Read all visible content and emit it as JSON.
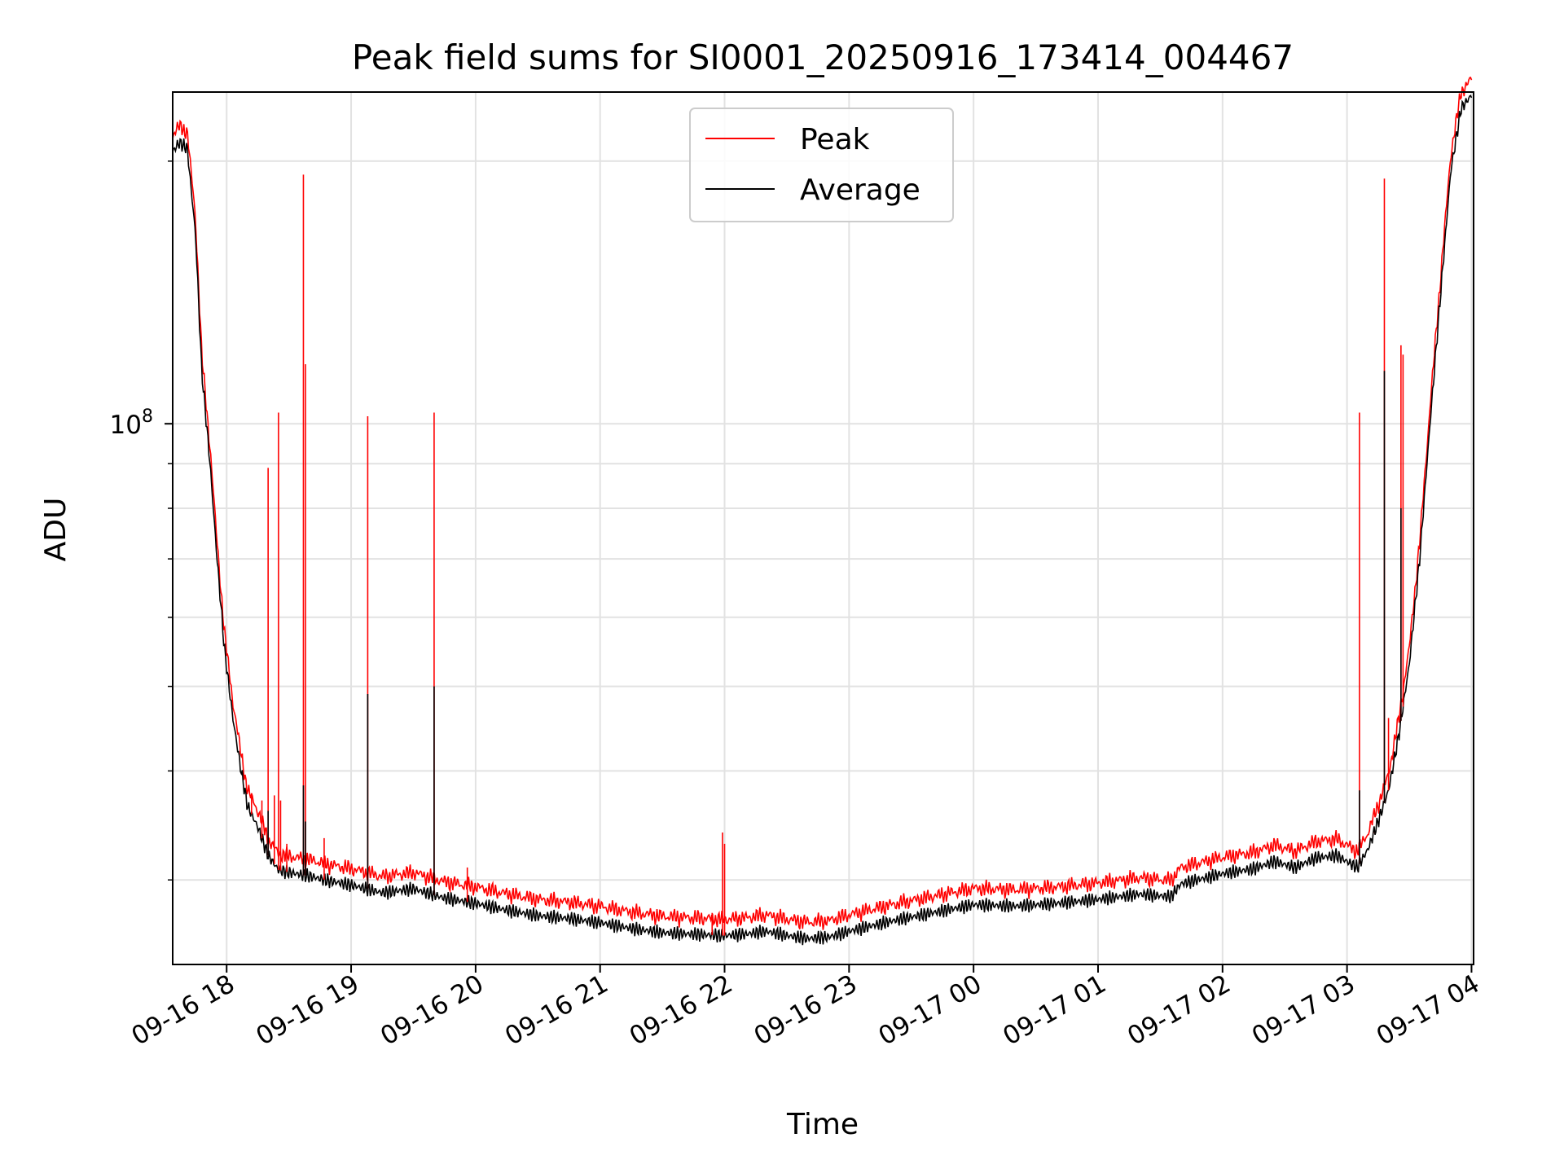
{
  "chart_data": {
    "type": "line",
    "title": "Peak field sums for SI0001_20250916_173414_004467",
    "xlabel": "Time",
    "ylabel": "ADU",
    "yscale": "log",
    "ylim": [
      24000000,
      240000000
    ],
    "xlim": [
      "2025-09-16 17:34",
      "2025-09-17 04:01"
    ],
    "x_ticks": [
      "09-16 18",
      "09-16 19",
      "09-16 20",
      "09-16 21",
      "09-16 22",
      "09-16 23",
      "09-17 00",
      "09-17 01",
      "09-17 02",
      "09-17 03",
      "09-17 04"
    ],
    "y_tick_label": {
      "base": "10",
      "exponent": "8"
    },
    "grid": true,
    "legend": {
      "position": "top-center",
      "entries": [
        "Peak",
        "Average"
      ]
    },
    "series": [
      {
        "name": "Average",
        "color": "#000000",
        "points": [
          [
            "2025-09-16 17:34",
            205000000
          ],
          [
            "2025-09-16 17:37",
            210000000
          ],
          [
            "2025-09-16 17:41",
            207000000
          ],
          [
            "2025-09-16 17:45",
            165000000
          ],
          [
            "2025-09-16 17:48",
            115000000
          ],
          [
            "2025-09-16 17:52",
            90000000
          ],
          [
            "2025-09-16 17:55",
            72000000
          ],
          [
            "2025-09-16 17:59",
            55000000
          ],
          [
            "2025-09-16 18:03",
            46000000
          ],
          [
            "2025-09-16 18:07",
            40000000
          ],
          [
            "2025-09-16 18:10",
            36500000
          ],
          [
            "2025-09-16 18:15",
            34500000
          ],
          [
            "2025-09-16 18:20",
            32000000
          ],
          [
            "2025-09-16 18:25",
            30800000
          ],
          [
            "2025-09-16 18:30",
            30600000
          ],
          [
            "2025-09-16 18:40",
            30300000
          ],
          [
            "2025-09-16 18:50",
            29900000
          ],
          [
            "2025-09-16 19:00",
            29600000
          ],
          [
            "2025-09-16 19:15",
            29000000
          ],
          [
            "2025-09-16 19:30",
            29300000
          ],
          [
            "2025-09-16 19:45",
            28600000
          ],
          [
            "2025-09-16 20:00",
            28200000
          ],
          [
            "2025-09-16 20:15",
            27700000
          ],
          [
            "2025-09-16 20:30",
            27300000
          ],
          [
            "2025-09-16 20:45",
            27100000
          ],
          [
            "2025-09-16 21:00",
            26800000
          ],
          [
            "2025-09-16 21:15",
            26400000
          ],
          [
            "2025-09-16 21:30",
            26100000
          ],
          [
            "2025-09-16 21:45",
            26000000
          ],
          [
            "2025-09-16 22:00",
            25900000
          ],
          [
            "2025-09-16 22:10",
            26000000
          ],
          [
            "2025-09-16 22:20",
            26200000
          ],
          [
            "2025-09-16 22:30",
            25900000
          ],
          [
            "2025-09-16 22:40",
            25700000
          ],
          [
            "2025-09-16 22:50",
            25800000
          ],
          [
            "2025-09-16 23:00",
            26200000
          ],
          [
            "2025-09-16 23:20",
            26900000
          ],
          [
            "2025-09-16 23:40",
            27500000
          ],
          [
            "2025-09-17 00:00",
            28100000
          ],
          [
            "2025-09-17 00:20",
            28000000
          ],
          [
            "2025-09-17 00:40",
            28200000
          ],
          [
            "2025-09-17 01:00",
            28500000
          ],
          [
            "2025-09-17 01:20",
            28900000
          ],
          [
            "2025-09-17 01:35",
            28700000
          ],
          [
            "2025-09-17 01:40",
            29700000
          ],
          [
            "2025-09-17 02:00",
            30500000
          ],
          [
            "2025-09-17 02:15",
            30900000
          ],
          [
            "2025-09-17 02:25",
            31500000
          ],
          [
            "2025-09-17 02:35",
            31000000
          ],
          [
            "2025-09-17 02:45",
            31800000
          ],
          [
            "2025-09-17 02:55",
            32000000
          ],
          [
            "2025-09-17 03:05",
            31000000
          ],
          [
            "2025-09-17 03:10",
            32500000
          ],
          [
            "2025-09-17 03:15",
            35000000
          ],
          [
            "2025-09-17 03:20",
            38000000
          ],
          [
            "2025-09-17 03:25",
            44000000
          ],
          [
            "2025-09-17 03:30",
            53000000
          ],
          [
            "2025-09-17 03:35",
            70000000
          ],
          [
            "2025-09-17 03:40",
            100000000
          ],
          [
            "2025-09-17 03:45",
            140000000
          ],
          [
            "2025-09-17 03:50",
            195000000
          ],
          [
            "2025-09-17 03:55",
            230000000
          ],
          [
            "2025-09-17 04:00",
            238000000
          ]
        ]
      },
      {
        "name": "Peak",
        "color": "#ff0000",
        "offset_ratio": 1.035,
        "spikes": [
          [
            "2025-09-16 18:12",
            37500000
          ],
          [
            "2025-09-16 18:17",
            37000000
          ],
          [
            "2025-09-16 18:20",
            89000000
          ],
          [
            "2025-09-16 18:23",
            37500000
          ],
          [
            "2025-09-16 18:25",
            103000000
          ],
          [
            "2025-09-16 18:26",
            37000000
          ],
          [
            "2025-09-16 18:29",
            33000000
          ],
          [
            "2025-09-16 18:37",
            193000000
          ],
          [
            "2025-09-16 18:38",
            117000000
          ],
          [
            "2025-09-16 18:47",
            33500000
          ],
          [
            "2025-09-16 19:08",
            102000000
          ],
          [
            "2025-09-16 19:40",
            103000000
          ],
          [
            "2025-09-16 19:56",
            31000000
          ],
          [
            "2025-09-16 21:54",
            27500000
          ],
          [
            "2025-09-16 21:59",
            34000000
          ],
          [
            "2025-09-16 22:00",
            33000000
          ],
          [
            "2025-09-17 03:06",
            103000000
          ],
          [
            "2025-09-17 03:13",
            34000000
          ],
          [
            "2025-09-17 03:18",
            191000000
          ],
          [
            "2025-09-17 03:20",
            46000000
          ],
          [
            "2025-09-17 03:26",
            123000000
          ],
          [
            "2025-09-17 03:27",
            120000000
          ]
        ]
      }
    ],
    "average_spikes": [
      [
        "2025-09-16 18:20",
        36000000
      ],
      [
        "2025-09-16 18:37",
        38500000
      ],
      [
        "2025-09-16 18:38",
        35000000
      ],
      [
        "2025-09-16 19:08",
        49000000
      ],
      [
        "2025-09-16 19:40",
        50000000
      ],
      [
        "2025-09-17 03:06",
        38000000
      ],
      [
        "2025-09-17 03:18",
        115000000
      ],
      [
        "2025-09-17 03:26",
        80000000
      ]
    ]
  }
}
